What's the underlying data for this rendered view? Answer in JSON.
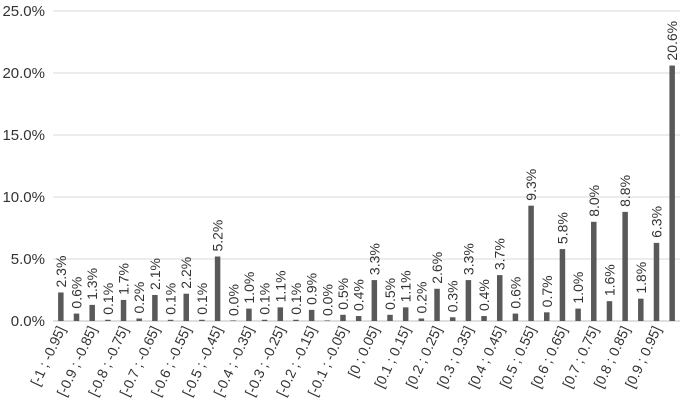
{
  "chart_data": {
    "type": "bar",
    "categories": [
      "[-1 ; -0.95]",
      "[-0.95 ; -0.9]",
      "[-0.9 ; -0.85]",
      "[-0.85 ; -0.8]",
      "[-0.8 ; -0.75]",
      "[-0.75 ; -0.7]",
      "[-0.7 ; -0.65]",
      "[-0.65 ; -0.6]",
      "[-0.6 ; -0.55]",
      "[-0.55 ; -0.5]",
      "[-0.5 ; -0.45]",
      "[-0.45 ; -0.4]",
      "[-0.4 ; -0.35]",
      "[-0.35 ; -0.3]",
      "[-0.3 ; -0.25]",
      "[-0.25 ; -0.2]",
      "[-0.2 ; -0.15]",
      "[-0.15 ; -0.1]",
      "[-0.1 ; -0.05]",
      "[-0.05 ; 0]",
      "[0 ; 0.05]",
      "[0.05 ; 0.1]",
      "[0.1 ; 0.15]",
      "[0.15 ; 0.2]",
      "[0.2 ; 0.25]",
      "[0.25 ; 0.3]",
      "[0.3 ; 0.35]",
      "[0.35 ; 0.4]",
      "[0.4 ; 0.45]",
      "[0.45 ; 0.5]",
      "[0.5 ; 0.55]",
      "[0.55 ; 0.6]",
      "[0.6 ; 0.65]",
      "[0.65 ; 0.7]",
      "[0.7 ; 0.75]",
      "[0.75 ; 0.8]",
      "[0.8 ; 0.85]",
      "[0.85 ; 0.9]",
      "[0.9 ; 0.95]",
      "[0.95 ; 1]"
    ],
    "visible_tick_labels": [
      "[-1 ; -0.95]",
      "[-0.9 ; -0.85]",
      "[-0.8 ; -0.75]",
      "[-0.7 ; -0.65]",
      "[-0.6 ; -0.55]",
      "[-0.5 ; -0.45]",
      "[-0.4 ; -0.35]",
      "[-0.3 ; -0.25]",
      "[-0.2 ; -0.15]",
      "[-0.1 ; -0.05]",
      "[0 ; 0.05]",
      "[0.1 ; 0.15]",
      "[0.2 ; 0.25]",
      "[0.3 ; 0.35]",
      "[0.4 ; 0.45]",
      "[0.5 ; 0.55]",
      "[0.6 ; 0.65]",
      "[0.7 ; 0.75]",
      "[0.8 ; 0.85]",
      "[0.9 ; 0.95]"
    ],
    "values": [
      2.3,
      0.6,
      1.3,
      0.1,
      1.7,
      0.2,
      2.1,
      0.1,
      2.2,
      0.1,
      5.2,
      0.0,
      1.0,
      0.1,
      1.1,
      0.1,
      0.9,
      0.0,
      0.5,
      0.4,
      3.3,
      0.5,
      1.1,
      0.2,
      2.6,
      0.3,
      3.3,
      0.4,
      3.7,
      0.6,
      9.3,
      0.7,
      5.8,
      1.0,
      8.0,
      1.6,
      8.8,
      1.8,
      6.3,
      20.6
    ],
    "data_labels": [
      "2.3%",
      "0.6%",
      "1.3%",
      "0.1%",
      "1.7%",
      "0.2%",
      "2.1%",
      "0.1%",
      "2.2%",
      "0.1%",
      "5.2%",
      "0.0%",
      "1.0%",
      "0.1%",
      "1.1%",
      "0.1%",
      "0.9%",
      "0.0%",
      "0.5%",
      "0.4%",
      "3.3%",
      "0.5%",
      "1.1%",
      "0.2%",
      "2.6%",
      "0.3%",
      "3.3%",
      "0.4%",
      "3.7%",
      "0.6%",
      "9.3%",
      "0.7%",
      "5.8%",
      "1.0%",
      "8.0%",
      "1.6%",
      "8.8%",
      "1.8%",
      "6.3%",
      "20.6%"
    ],
    "yticks": [
      "0.0%",
      "5.0%",
      "10.0%",
      "15.0%",
      "20.0%",
      "25.0%"
    ],
    "ylim": [
      0,
      25
    ],
    "title": "",
    "xlabel": "",
    "ylabel": "",
    "grid": true,
    "legend": "none",
    "colors": {
      "bar": "#595959",
      "grid": "#d9d9d9",
      "text": "#333333"
    }
  }
}
